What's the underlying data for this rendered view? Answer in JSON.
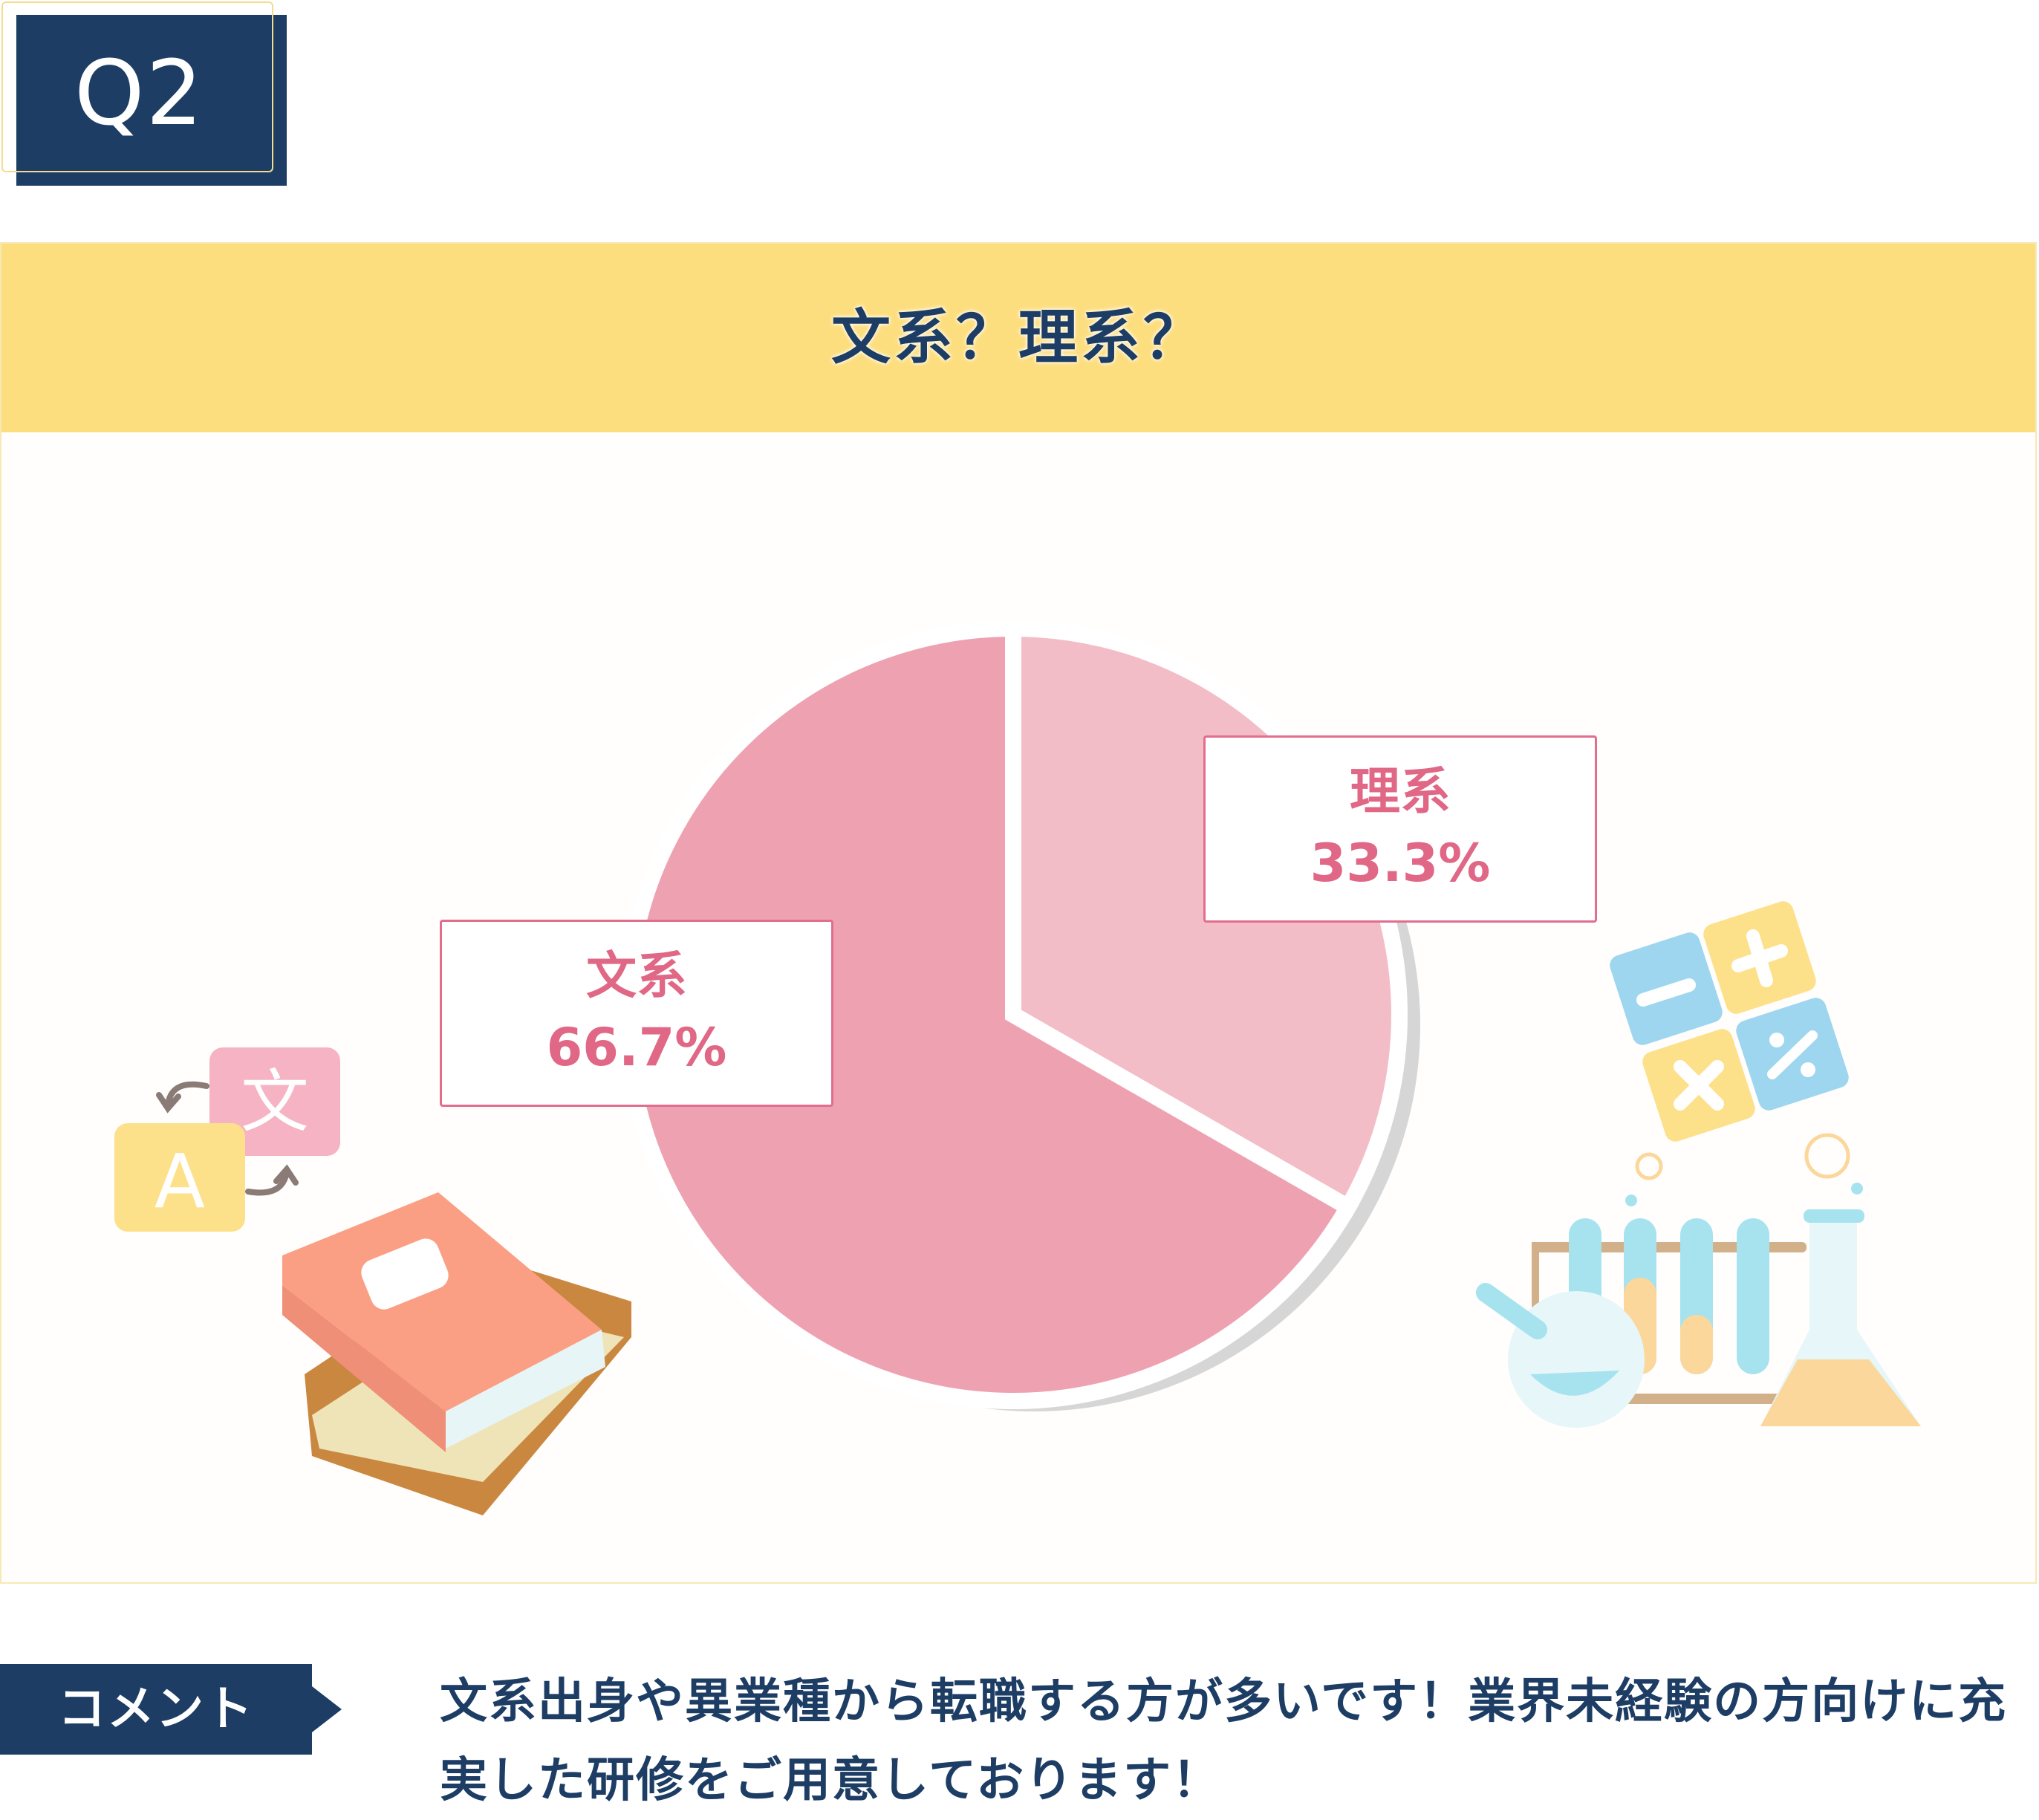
{
  "badge": {
    "label": "Q2"
  },
  "panel": {
    "title": "文系？理系？"
  },
  "chart_data": {
    "type": "pie",
    "title": "文系？理系？",
    "slices": [
      {
        "name": "理系",
        "value": 33.3,
        "label": "33.3%",
        "color": "#f3bdc8"
      },
      {
        "name": "文系",
        "value": 66.7,
        "label": "66.7%",
        "color": "#eea2b1"
      }
    ],
    "start_angle_deg": 0,
    "direction": "clockwise",
    "separator_color": "#ffffff",
    "shadow_color": "#d6d6d6"
  },
  "illustrations": {
    "left": [
      "translate-icon",
      "books-icon"
    ],
    "right": [
      "calculator-icon",
      "lab-glassware-icon"
    ]
  },
  "comment": {
    "tag": "コメント",
    "text": "文系出身や異業種から転職する方が多いです！業界未経験の方向けに充実した研修をご用意しております！"
  }
}
